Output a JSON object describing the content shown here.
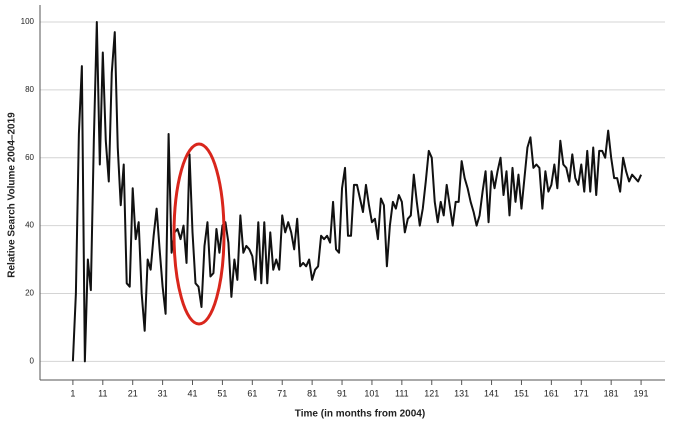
{
  "chart_data": {
    "type": "line",
    "x_label": "Time (in months from 2004)",
    "y_label": "Relative Search Volume 2004–2019",
    "color": "#111111",
    "x": [
      1,
      2,
      3,
      4,
      5,
      6,
      7,
      8,
      9,
      10,
      11,
      12,
      13,
      14,
      15,
      16,
      17,
      18,
      19,
      20,
      21,
      22,
      23,
      24,
      25,
      26,
      27,
      28,
      29,
      30,
      31,
      32,
      33,
      34,
      35,
      36,
      37,
      38,
      39,
      40,
      41,
      42,
      43,
      44,
      45,
      46,
      47,
      48,
      49,
      50,
      51,
      52,
      53,
      54,
      55,
      56,
      57,
      58,
      59,
      60,
      61,
      62,
      63,
      64,
      65,
      66,
      67,
      68,
      69,
      70,
      71,
      72,
      73,
      74,
      75,
      76,
      77,
      78,
      79,
      80,
      81,
      82,
      83,
      84,
      85,
      86,
      87,
      88,
      89,
      90,
      91,
      92,
      93,
      94,
      95,
      96,
      97,
      98,
      99,
      100,
      101,
      102,
      103,
      104,
      105,
      106,
      107,
      108,
      109,
      110,
      111,
      112,
      113,
      114,
      115,
      116,
      117,
      118,
      119,
      120,
      121,
      122,
      123,
      124,
      125,
      126,
      127,
      128,
      129,
      130,
      131,
      132,
      133,
      134,
      135,
      136,
      137,
      138,
      139,
      140,
      141,
      142,
      143,
      144,
      145,
      146,
      147,
      148,
      149,
      150,
      151,
      152,
      153,
      154,
      155,
      156,
      157,
      158,
      159,
      160,
      161,
      162,
      163,
      164,
      165,
      166,
      167,
      168,
      169,
      170,
      171,
      172,
      173,
      174,
      175,
      176,
      177,
      178,
      179,
      180,
      181,
      182,
      183,
      184,
      185,
      186,
      187,
      188,
      189,
      190,
      191
    ],
    "values": [
      0,
      20,
      67,
      87,
      0,
      30,
      21,
      65,
      100,
      58,
      91,
      65,
      53,
      85,
      97,
      63,
      46,
      58,
      23,
      22,
      51,
      36,
      41,
      20,
      9,
      30,
      27,
      37,
      45,
      33,
      22,
      14,
      67,
      32,
      38,
      39,
      36,
      40,
      29,
      61,
      38,
      23,
      22,
      16,
      34,
      41,
      25,
      26,
      39,
      32,
      40,
      41,
      35,
      19,
      30,
      24,
      43,
      32,
      34,
      33,
      31,
      24,
      41,
      23,
      41,
      23,
      38,
      27,
      30,
      27,
      43,
      38,
      41,
      38,
      33,
      42,
      28,
      29,
      28,
      30,
      24,
      27,
      28,
      37,
      36,
      37,
      35,
      47,
      33,
      32,
      51,
      57,
      37,
      37,
      52,
      52,
      48,
      44,
      52,
      46,
      41,
      42,
      36,
      48,
      46,
      28,
      40,
      47,
      45,
      49,
      47,
      38,
      42,
      43,
      55,
      47,
      40,
      45,
      53,
      62,
      60,
      47,
      41,
      47,
      43,
      52,
      46,
      40,
      47,
      47,
      59,
      54,
      51,
      47,
      44,
      40,
      43,
      50,
      56,
      41,
      56,
      51,
      56,
      60,
      49,
      56,
      43,
      57,
      47,
      55,
      45,
      54,
      63,
      66,
      57,
      58,
      57,
      45,
      56,
      50,
      52,
      58,
      51,
      65,
      58,
      57,
      53,
      61,
      54,
      52,
      58,
      50,
      62,
      50,
      63,
      49,
      62,
      62,
      60,
      68,
      60,
      54,
      54,
      50,
      60,
      56,
      53,
      55,
      54,
      53,
      55
    ],
    "xlim": [
      -10,
      199
    ],
    "ylim": [
      -5.5,
      105
    ],
    "xticks": [
      1,
      11,
      21,
      31,
      41,
      51,
      61,
      71,
      81,
      91,
      101,
      111,
      121,
      131,
      141,
      151,
      161,
      171,
      181,
      191
    ],
    "yticks": [
      0,
      20,
      40,
      60,
      80,
      100
    ],
    "grid": true
  }
}
